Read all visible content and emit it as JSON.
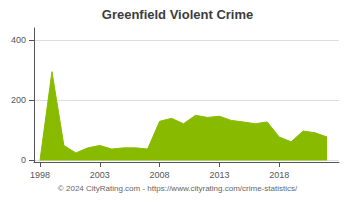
{
  "chart_data": {
    "type": "area",
    "title": "Greenfield Violent Crime",
    "annotations": [
      "© 2024 CityRating.com - https://www.cityrating.com/crime-statistics/"
    ],
    "x": [
      1998,
      1999,
      2000,
      2001,
      2002,
      2003,
      2004,
      2005,
      2006,
      2007,
      2008,
      2009,
      2010,
      2011,
      2012,
      2013,
      2014,
      2015,
      2016,
      2017,
      2018,
      2019,
      2020,
      2021,
      2022
    ],
    "values": [
      0,
      295,
      50,
      25,
      42,
      50,
      38,
      42,
      42,
      38,
      130,
      140,
      122,
      150,
      143,
      147,
      133,
      128,
      122,
      128,
      78,
      62,
      98,
      92,
      78
    ],
    "color": "#88bb00",
    "xlim": [
      1997.5,
      2023.0
    ],
    "xticks": [
      1998,
      2003,
      2008,
      2013,
      2018
    ],
    "ylim": [
      -5,
      440
    ],
    "yticks": [
      0,
      200,
      400
    ],
    "grid": true
  }
}
